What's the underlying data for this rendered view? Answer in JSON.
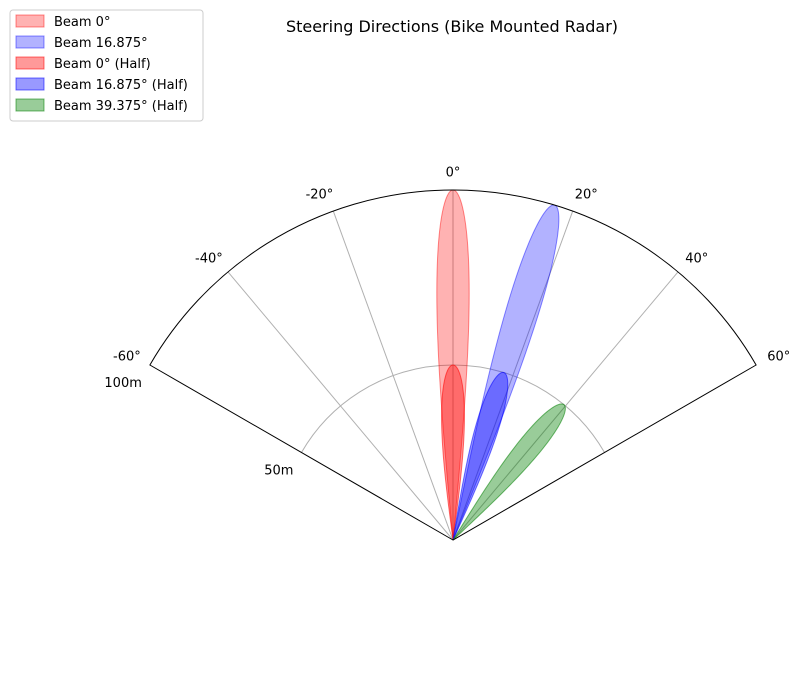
{
  "chart_data": {
    "type": "polar-area",
    "title": "Steering Directions (Bike Mounted Radar)",
    "theta_range": [
      -60,
      60
    ],
    "theta_unit": "deg",
    "theta_ticks": [
      -60,
      -40,
      -20,
      0,
      20,
      40,
      60
    ],
    "theta_tick_labels": [
      "-60°",
      "-40°",
      "-20°",
      "0°",
      "20°",
      "40°",
      "60°"
    ],
    "r_range": [
      0,
      100
    ],
    "r_ticks": [
      50,
      100
    ],
    "r_tick_labels": [
      "50m",
      "100m"
    ],
    "grid": true,
    "legend_position": "top-left",
    "series": [
      {
        "name": "Beam 0°",
        "steer_deg": 0,
        "range_m": 100,
        "half_width_deg": 5.3,
        "color": "#ff0000",
        "alpha": 0.3
      },
      {
        "name": "Beam 16.875°",
        "steer_deg": 16.875,
        "range_m": 100,
        "half_width_deg": 5.3,
        "color": "#0000ff",
        "alpha": 0.3
      },
      {
        "name": "Beam 0° (Half)",
        "steer_deg": 0,
        "range_m": 50,
        "half_width_deg": 7.5,
        "color": "#ff0000",
        "alpha": 0.4
      },
      {
        "name": "Beam 16.875° (Half)",
        "steer_deg": 16.875,
        "range_m": 50,
        "half_width_deg": 7.5,
        "color": "#0000ff",
        "alpha": 0.4
      },
      {
        "name": "Beam 39.375° (Half)",
        "steer_deg": 39.375,
        "range_m": 50,
        "half_width_deg": 7.5,
        "color": "#008000",
        "alpha": 0.4
      }
    ]
  }
}
